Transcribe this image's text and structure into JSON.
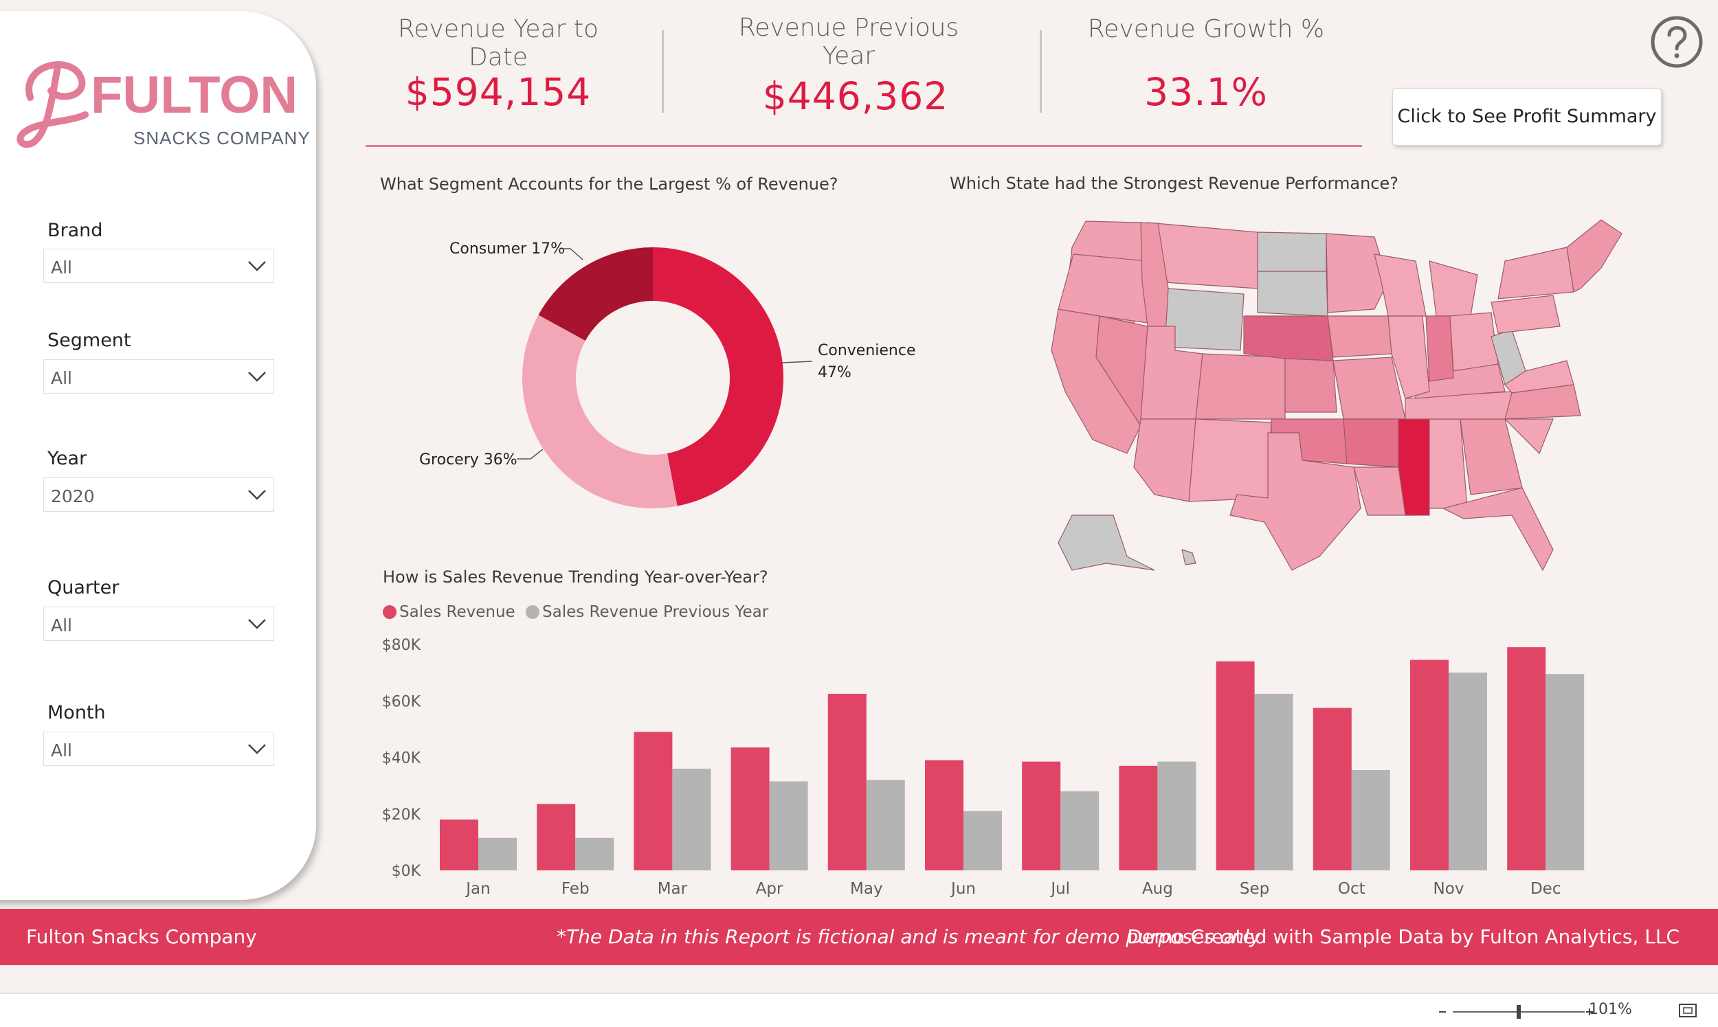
{
  "brand": {
    "name_script": "FULTON",
    "name_sub": "SNACKS COMPANY",
    "color": "#e27d96"
  },
  "filters": [
    {
      "label": "Brand",
      "value": "All"
    },
    {
      "label": "Segment",
      "value": "All"
    },
    {
      "label": "Year",
      "value": "2020"
    },
    {
      "label": "Quarter",
      "value": "All"
    },
    {
      "label": "Month",
      "value": "All"
    }
  ],
  "kpis": [
    {
      "title": "Revenue Year to Date",
      "value": "$594,154"
    },
    {
      "title": "Revenue Previous Year",
      "value": "$446,362"
    },
    {
      "title": "Revenue Growth %",
      "value": "33.1%"
    }
  ],
  "help_icon": "question-circle-icon",
  "profit_button": "Click to See Profit Summary",
  "segment_chart": {
    "title": "What Segment Accounts for the Largest % of Revenue?",
    "labels": {
      "consumer": "Consumer 17%",
      "convenience_1": "Convenience",
      "convenience_2": "47%",
      "grocery": "Grocery 36%"
    }
  },
  "map_chart": {
    "title": "Which State had the Strongest Revenue Performance?"
  },
  "trend_chart": {
    "title": "How is Sales Revenue Trending Year-over-Year?",
    "legend": [
      "Sales Revenue",
      "Sales Revenue Previous Year"
    ]
  },
  "colors": {
    "accent": "#dc1c43",
    "current": "#e04566",
    "previous": "#b5b4b4",
    "consumer": "#a8142f",
    "convenience": "#dc1a42",
    "grocery": "#f2a6b6",
    "footer": "#de3a5a"
  },
  "chart_data": [
    {
      "type": "pie",
      "title": "What Segment Accounts for the Largest % of Revenue?",
      "categories": [
        "Convenience",
        "Grocery",
        "Consumer"
      ],
      "values": [
        47,
        36,
        17
      ],
      "unit": "%"
    },
    {
      "type": "bar",
      "title": "How is Sales Revenue Trending Year-over-Year?",
      "categories": [
        "Jan",
        "Feb",
        "Mar",
        "Apr",
        "May",
        "Jun",
        "Jul",
        "Aug",
        "Sep",
        "Oct",
        "Nov",
        "Dec"
      ],
      "series": [
        {
          "name": "Sales Revenue",
          "values": [
            18000,
            23500,
            49000,
            43500,
            62500,
            39000,
            38500,
            37000,
            74000,
            57500,
            74500,
            79000
          ]
        },
        {
          "name": "Sales Revenue Previous Year",
          "values": [
            11500,
            11500,
            36000,
            31500,
            32000,
            21000,
            28000,
            38500,
            62500,
            35500,
            70000,
            69500
          ]
        }
      ],
      "yticks": [
        "$0K",
        "$20K",
        "$40K",
        "$60K",
        "$80K"
      ],
      "ylim": [
        0,
        80000
      ],
      "legend": "top-left",
      "grid": false
    }
  ],
  "footer": {
    "left": "Fulton Snacks Company",
    "center": "*The Data in this Report is fictional and is meant for demo purposes only",
    "right": "Demo Created with Sample Data by Fulton Analytics, LLC"
  },
  "status": {
    "zoom": "101%"
  }
}
